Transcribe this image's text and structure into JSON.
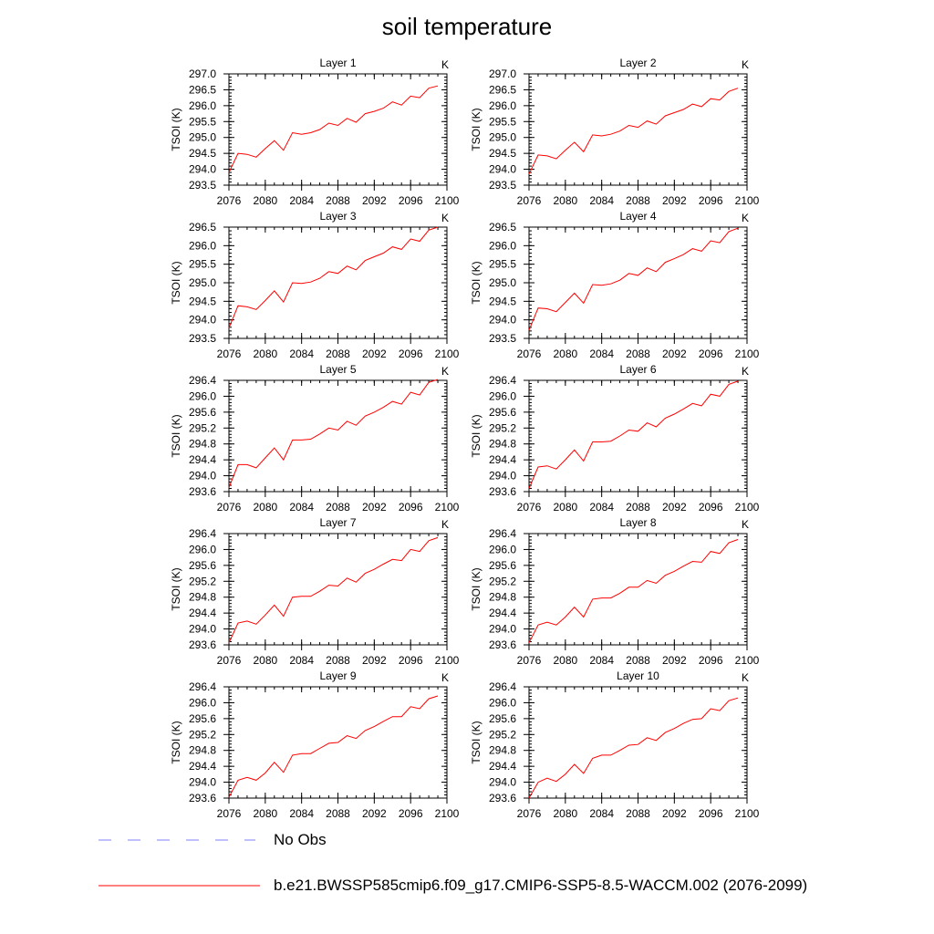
{
  "title": "soil temperature",
  "legend": [
    {
      "label": "No Obs",
      "color": "#8080ff",
      "dash": true
    },
    {
      "label": "b.e21.BWSSP585cmip6.f09_g17.CMIP6-SSP5-8.5-WACCM.002 (2076-2099)",
      "color": "#ff0000",
      "dash": false
    }
  ],
  "chart_data": [
    {
      "type": "line",
      "title": "Layer 1",
      "units": "K",
      "ylabel": "TSOI  (K)",
      "xlim": [
        2076,
        2100
      ],
      "ylim": [
        293.5,
        297.0
      ],
      "yticks": [
        "293.5",
        "294.0",
        "294.5",
        "295.0",
        "295.5",
        "296.0",
        "296.5",
        "297.0"
      ],
      "xticks": [
        "2076",
        "2080",
        "2084",
        "2088",
        "2092",
        "2096",
        "2100"
      ],
      "series": [
        {
          "color": "#ff0000",
          "x": [
            2076,
            2077,
            2078,
            2079,
            2080,
            2081,
            2082,
            2083,
            2084,
            2085,
            2086,
            2087,
            2088,
            2089,
            2090,
            2091,
            2092,
            2093,
            2094,
            2095,
            2096,
            2097,
            2098,
            2099
          ],
          "values": [
            293.9,
            294.5,
            294.47,
            294.38,
            294.65,
            294.9,
            294.6,
            295.15,
            295.1,
            295.15,
            295.25,
            295.45,
            295.38,
            295.6,
            295.48,
            295.75,
            295.82,
            295.92,
            296.12,
            296.02,
            296.3,
            296.25,
            296.55,
            296.62
          ]
        }
      ]
    },
    {
      "type": "line",
      "title": "Layer 2",
      "units": "K",
      "ylabel": "TSOI  (K)",
      "xlim": [
        2076,
        2100
      ],
      "ylim": [
        293.5,
        297.0
      ],
      "yticks": [
        "293.5",
        "294.0",
        "294.5",
        "295.0",
        "295.5",
        "296.0",
        "296.5",
        "297.0"
      ],
      "xticks": [
        "2076",
        "2080",
        "2084",
        "2088",
        "2092",
        "2096",
        "2100"
      ],
      "series": [
        {
          "color": "#ff0000",
          "x": [
            2076,
            2077,
            2078,
            2079,
            2080,
            2081,
            2082,
            2083,
            2084,
            2085,
            2086,
            2087,
            2088,
            2089,
            2090,
            2091,
            2092,
            2093,
            2094,
            2095,
            2096,
            2097,
            2098,
            2099
          ],
          "values": [
            293.85,
            294.45,
            294.42,
            294.33,
            294.6,
            294.85,
            294.55,
            295.08,
            295.05,
            295.1,
            295.2,
            295.38,
            295.32,
            295.52,
            295.42,
            295.68,
            295.78,
            295.88,
            296.05,
            295.97,
            296.22,
            296.18,
            296.45,
            296.55
          ]
        }
      ]
    },
    {
      "type": "line",
      "title": "Layer 3",
      "units": "K",
      "ylabel": "TSOI  (K)",
      "xlim": [
        2076,
        2100
      ],
      "ylim": [
        293.5,
        296.5
      ],
      "yticks": [
        "293.5",
        "294.0",
        "294.5",
        "295.0",
        "295.5",
        "296.0",
        "296.5"
      ],
      "xticks": [
        "2076",
        "2080",
        "2084",
        "2088",
        "2092",
        "2096",
        "2100"
      ],
      "series": [
        {
          "color": "#ff0000",
          "x": [
            2076,
            2077,
            2078,
            2079,
            2080,
            2081,
            2082,
            2083,
            2084,
            2085,
            2086,
            2087,
            2088,
            2089,
            2090,
            2091,
            2092,
            2093,
            2094,
            2095,
            2096,
            2097,
            2098,
            2099
          ],
          "values": [
            293.78,
            294.38,
            294.35,
            294.28,
            294.52,
            294.78,
            294.48,
            295.0,
            294.98,
            295.02,
            295.12,
            295.3,
            295.25,
            295.45,
            295.35,
            295.6,
            295.7,
            295.8,
            295.97,
            295.9,
            296.18,
            296.12,
            296.42,
            296.5
          ]
        }
      ]
    },
    {
      "type": "line",
      "title": "Layer 4",
      "units": "K",
      "ylabel": "TSOI  (K)",
      "xlim": [
        2076,
        2100
      ],
      "ylim": [
        293.5,
        296.5
      ],
      "yticks": [
        "293.5",
        "294.0",
        "294.5",
        "295.0",
        "295.5",
        "296.0",
        "296.5"
      ],
      "xticks": [
        "2076",
        "2080",
        "2084",
        "2088",
        "2092",
        "2096",
        "2100"
      ],
      "series": [
        {
          "color": "#ff0000",
          "x": [
            2076,
            2077,
            2078,
            2079,
            2080,
            2081,
            2082,
            2083,
            2084,
            2085,
            2086,
            2087,
            2088,
            2089,
            2090,
            2091,
            2092,
            2093,
            2094,
            2095,
            2096,
            2097,
            2098,
            2099
          ],
          "values": [
            293.72,
            294.32,
            294.3,
            294.22,
            294.47,
            294.72,
            294.45,
            294.95,
            294.93,
            294.97,
            295.07,
            295.25,
            295.2,
            295.4,
            295.3,
            295.55,
            295.65,
            295.76,
            295.92,
            295.85,
            296.13,
            296.08,
            296.38,
            296.47
          ]
        }
      ]
    },
    {
      "type": "line",
      "title": "Layer 5",
      "units": "K",
      "ylabel": "TSOI  (K)",
      "xlim": [
        2076,
        2100
      ],
      "ylim": [
        293.6,
        296.4
      ],
      "yticks": [
        "293.6",
        "294.0",
        "294.4",
        "294.8",
        "295.2",
        "295.6",
        "296.0",
        "296.4"
      ],
      "xticks": [
        "2076",
        "2080",
        "2084",
        "2088",
        "2092",
        "2096",
        "2100"
      ],
      "series": [
        {
          "color": "#ff0000",
          "x": [
            2076,
            2077,
            2078,
            2079,
            2080,
            2081,
            2082,
            2083,
            2084,
            2085,
            2086,
            2087,
            2088,
            2089,
            2090,
            2091,
            2092,
            2093,
            2094,
            2095,
            2096,
            2097,
            2098,
            2099
          ],
          "values": [
            293.7,
            294.28,
            294.28,
            294.2,
            294.45,
            294.7,
            294.4,
            294.9,
            294.9,
            294.92,
            295.05,
            295.2,
            295.15,
            295.37,
            295.27,
            295.5,
            295.6,
            295.72,
            295.87,
            295.8,
            296.1,
            296.03,
            296.35,
            296.42
          ]
        }
      ]
    },
    {
      "type": "line",
      "title": "Layer 6",
      "units": "K",
      "ylabel": "TSOI  (K)",
      "xlim": [
        2076,
        2100
      ],
      "ylim": [
        293.6,
        296.4
      ],
      "yticks": [
        "293.6",
        "294.0",
        "294.4",
        "294.8",
        "295.2",
        "295.6",
        "296.0",
        "296.4"
      ],
      "xticks": [
        "2076",
        "2080",
        "2084",
        "2088",
        "2092",
        "2096",
        "2100"
      ],
      "series": [
        {
          "color": "#ff0000",
          "x": [
            2076,
            2077,
            2078,
            2079,
            2080,
            2081,
            2082,
            2083,
            2084,
            2085,
            2086,
            2087,
            2088,
            2089,
            2090,
            2091,
            2092,
            2093,
            2094,
            2095,
            2096,
            2097,
            2098,
            2099
          ],
          "values": [
            293.68,
            294.22,
            294.25,
            294.17,
            294.4,
            294.65,
            294.37,
            294.85,
            294.85,
            294.87,
            295.0,
            295.15,
            295.12,
            295.33,
            295.23,
            295.45,
            295.55,
            295.68,
            295.82,
            295.76,
            296.05,
            296.0,
            296.3,
            296.38
          ]
        }
      ]
    },
    {
      "type": "line",
      "title": "Layer 7",
      "units": "K",
      "ylabel": "TSOI  (K)",
      "xlim": [
        2076,
        2100
      ],
      "ylim": [
        293.6,
        296.4
      ],
      "yticks": [
        "293.6",
        "294.0",
        "294.4",
        "294.8",
        "295.2",
        "295.6",
        "296.0",
        "296.4"
      ],
      "xticks": [
        "2076",
        "2080",
        "2084",
        "2088",
        "2092",
        "2096",
        "2100"
      ],
      "series": [
        {
          "color": "#ff0000",
          "x": [
            2076,
            2077,
            2078,
            2079,
            2080,
            2081,
            2082,
            2083,
            2084,
            2085,
            2086,
            2087,
            2088,
            2089,
            2090,
            2091,
            2092,
            2093,
            2094,
            2095,
            2096,
            2097,
            2098,
            2099
          ],
          "values": [
            293.65,
            294.15,
            294.2,
            294.12,
            294.35,
            294.6,
            294.32,
            294.8,
            294.82,
            294.82,
            294.95,
            295.1,
            295.08,
            295.28,
            295.18,
            295.4,
            295.5,
            295.63,
            295.75,
            295.72,
            296.0,
            295.95,
            296.22,
            296.3
          ]
        }
      ]
    },
    {
      "type": "line",
      "title": "Layer 8",
      "units": "K",
      "ylabel": "TSOI  (K)",
      "xlim": [
        2076,
        2100
      ],
      "ylim": [
        293.6,
        296.4
      ],
      "yticks": [
        "293.6",
        "294.0",
        "294.4",
        "294.8",
        "295.2",
        "295.6",
        "296.0",
        "296.4"
      ],
      "xticks": [
        "2076",
        "2080",
        "2084",
        "2088",
        "2092",
        "2096",
        "2100"
      ],
      "series": [
        {
          "color": "#ff0000",
          "x": [
            2076,
            2077,
            2078,
            2079,
            2080,
            2081,
            2082,
            2083,
            2084,
            2085,
            2086,
            2087,
            2088,
            2089,
            2090,
            2091,
            2092,
            2093,
            2094,
            2095,
            2096,
            2097,
            2098,
            2099
          ],
          "values": [
            293.65,
            294.1,
            294.17,
            294.1,
            294.3,
            294.55,
            294.3,
            294.75,
            294.78,
            294.78,
            294.9,
            295.05,
            295.05,
            295.22,
            295.15,
            295.35,
            295.45,
            295.58,
            295.7,
            295.68,
            295.95,
            295.9,
            296.17,
            296.25
          ]
        }
      ]
    },
    {
      "type": "line",
      "title": "Layer 9",
      "units": "K",
      "ylabel": "TSOI  (K)",
      "xlim": [
        2076,
        2100
      ],
      "ylim": [
        293.6,
        296.4
      ],
      "yticks": [
        "293.6",
        "294.0",
        "294.4",
        "294.8",
        "295.2",
        "295.6",
        "296.0",
        "296.4"
      ],
      "xticks": [
        "2076",
        "2080",
        "2084",
        "2088",
        "2092",
        "2096",
        "2100"
      ],
      "series": [
        {
          "color": "#ff0000",
          "x": [
            2076,
            2077,
            2078,
            2079,
            2080,
            2081,
            2082,
            2083,
            2084,
            2085,
            2086,
            2087,
            2088,
            2089,
            2090,
            2091,
            2092,
            2093,
            2094,
            2095,
            2096,
            2097,
            2098,
            2099
          ],
          "values": [
            293.62,
            294.05,
            294.12,
            294.05,
            294.23,
            294.5,
            294.25,
            294.68,
            294.72,
            294.72,
            294.85,
            294.98,
            295.0,
            295.17,
            295.1,
            295.3,
            295.4,
            295.53,
            295.65,
            295.65,
            295.9,
            295.85,
            296.1,
            296.17
          ]
        }
      ]
    },
    {
      "type": "line",
      "title": "Layer 10",
      "units": "K",
      "ylabel": "TSOI  (K)",
      "xlim": [
        2076,
        2100
      ],
      "ylim": [
        293.6,
        296.4
      ],
      "yticks": [
        "293.6",
        "294.0",
        "294.4",
        "294.8",
        "295.2",
        "295.6",
        "296.0",
        "296.4"
      ],
      "xticks": [
        "2076",
        "2080",
        "2084",
        "2088",
        "2092",
        "2096",
        "2100"
      ],
      "series": [
        {
          "color": "#ff0000",
          "x": [
            2076,
            2077,
            2078,
            2079,
            2080,
            2081,
            2082,
            2083,
            2084,
            2085,
            2086,
            2087,
            2088,
            2089,
            2090,
            2091,
            2092,
            2093,
            2094,
            2095,
            2096,
            2097,
            2098,
            2099
          ],
          "values": [
            293.6,
            294.0,
            294.1,
            294.02,
            294.2,
            294.45,
            294.22,
            294.6,
            294.68,
            294.68,
            294.8,
            294.93,
            294.95,
            295.12,
            295.05,
            295.25,
            295.35,
            295.48,
            295.58,
            295.6,
            295.85,
            295.8,
            296.05,
            296.12
          ]
        }
      ]
    }
  ]
}
